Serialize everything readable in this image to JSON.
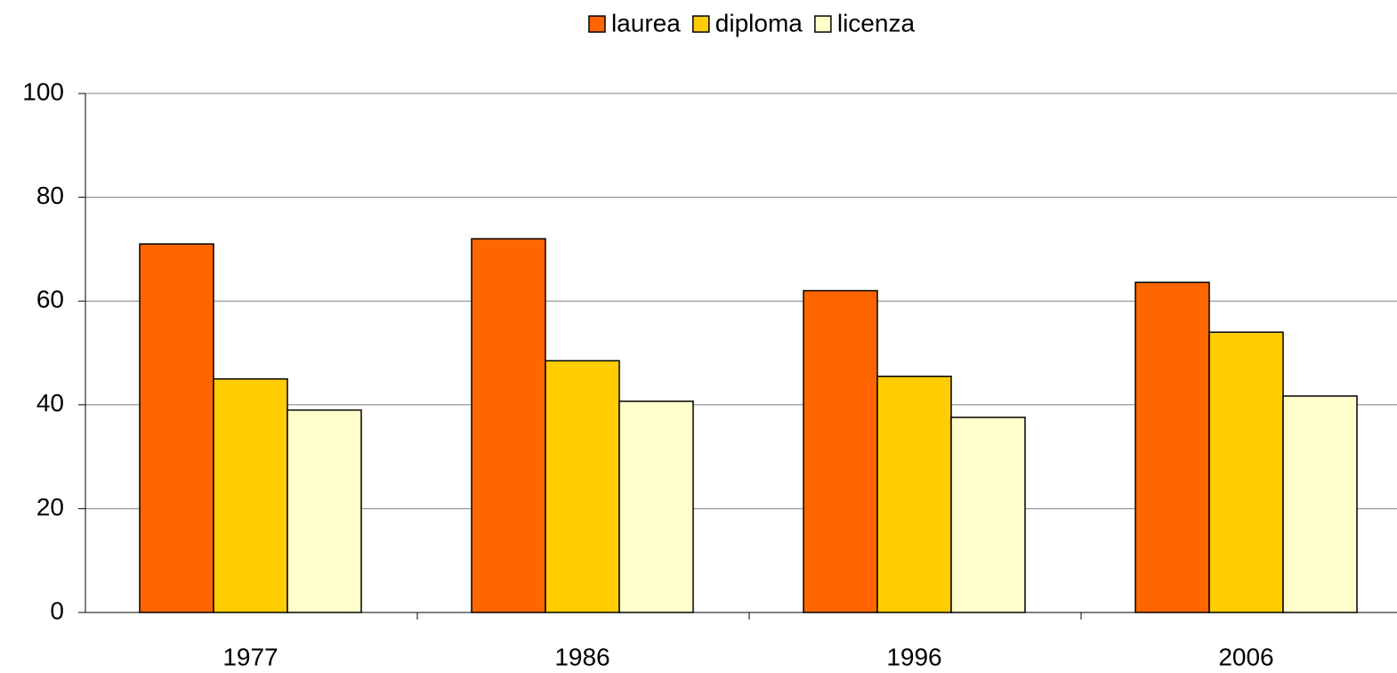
{
  "chart_data": {
    "type": "bar",
    "categories": [
      "1977",
      "1986",
      "1996",
      "2006"
    ],
    "series": [
      {
        "name": "laurea",
        "color": "#ff6600",
        "values": [
          71,
          72,
          62,
          63.6
        ]
      },
      {
        "name": "diploma",
        "color": "#ffcc00",
        "values": [
          45,
          48.5,
          45.5,
          54
        ]
      },
      {
        "name": "licenza",
        "color": "#ffffcc",
        "values": [
          39,
          40.7,
          37.6,
          41.7
        ]
      }
    ],
    "ylim": [
      0,
      100
    ],
    "yticks": [
      0,
      20,
      40,
      60,
      80,
      100
    ],
    "grid": true,
    "legend": "top"
  }
}
